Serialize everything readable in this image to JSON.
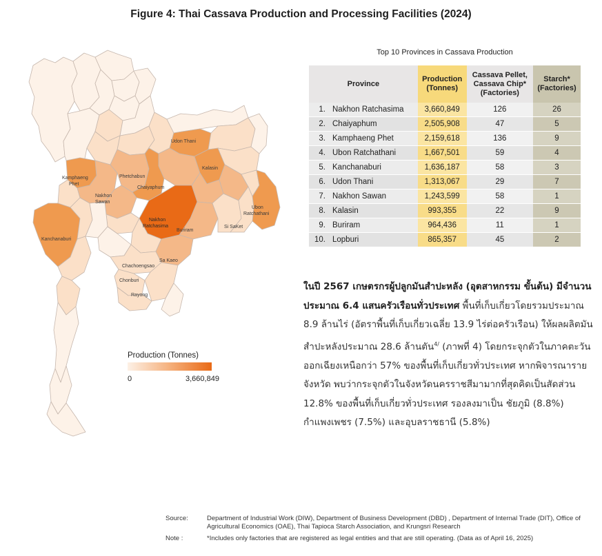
{
  "figure_title": "Figure 4: Thai Cassava Production and Processing Facilities (2024)",
  "map": {
    "colors": {
      "very_low": "#fdf2e8",
      "low": "#fbe0c8",
      "mid": "#f4b888",
      "high": "#ef9a4f",
      "max": "#e96a16",
      "outline": "#c6b7ad"
    },
    "labels": [
      {
        "name": "Kamphaeng Phet",
        "line1": "Kamphaeng",
        "line2": "Phet"
      },
      {
        "name": "Nakhon Sawan",
        "line1": "Nakhon",
        "line2": "Sawan"
      },
      {
        "name": "Phetchabun",
        "line1": "Phetchabun",
        "line2": ""
      },
      {
        "name": "Chaiyaphum",
        "line1": "Chaiyaphum",
        "line2": ""
      },
      {
        "name": "Udon Thani",
        "line1": "Udon Thani",
        "line2": ""
      },
      {
        "name": "Kalasin",
        "line1": "Kalasin",
        "line2": ""
      },
      {
        "name": "Nakhon Ratchasima",
        "line1": "Nakhon",
        "line2": "Ratchasima"
      },
      {
        "name": "Buriram",
        "line1": "Buriram",
        "line2": ""
      },
      {
        "name": "Ubon Ratchathani",
        "line1": "Ubon",
        "line2": "Ratchathani"
      },
      {
        "name": "Si SaKet",
        "line1": "Si SaKet",
        "line2": ""
      },
      {
        "name": "Kanchanaburi",
        "line1": "Kanchanaburi",
        "line2": ""
      },
      {
        "name": "Chachoengsao",
        "line1": "Chachoengsao",
        "line2": ""
      },
      {
        "name": "Sa Kaeo",
        "line1": "Sa Kaeo",
        "line2": ""
      },
      {
        "name": "Chonburi",
        "line1": "Chonburi",
        "line2": ""
      },
      {
        "name": "Rayong",
        "line1": "Rayong",
        "line2": ""
      }
    ]
  },
  "legend": {
    "title": "Production (Tonnes)",
    "min": "0",
    "max": "3,660,849",
    "gradient_start": "#fdf1e6",
    "gradient_end": "#e96a16"
  },
  "table": {
    "caption": "Top 10 Provinces in Cassava Production",
    "headers": {
      "province": "Province",
      "production_l1": "Production",
      "production_l2": "(Tonnes)",
      "pellet_l1": "Cassava Pellet,",
      "pellet_l2": "Cassava Chip*",
      "pellet_l3": "(Factories)",
      "starch_l1": "Starch*",
      "starch_l2": "(Factories)"
    },
    "rows": [
      {
        "rank": "1.",
        "province": "Nakhon Ratchasima",
        "production": "3,660,849",
        "pellet": "126",
        "starch": "26"
      },
      {
        "rank": "2.",
        "province": "Chaiyaphum",
        "production": "2,505,908",
        "pellet": "47",
        "starch": "5"
      },
      {
        "rank": "3.",
        "province": "Kamphaeng Phet",
        "production": "2,159,618",
        "pellet": "136",
        "starch": "9"
      },
      {
        "rank": "4.",
        "province": "Ubon Ratchathani",
        "production": "1,667,501",
        "pellet": "59",
        "starch": "4"
      },
      {
        "rank": "5.",
        "province": "Kanchanaburi",
        "production": "1,636,187",
        "pellet": "58",
        "starch": "3"
      },
      {
        "rank": "6.",
        "province": "Udon Thani",
        "production": "1,313,067",
        "pellet": "29",
        "starch": "7"
      },
      {
        "rank": "7.",
        "province": "Nakhon Sawan",
        "production": "1,243,599",
        "pellet": "58",
        "starch": "1"
      },
      {
        "rank": "8.",
        "province": "Kalasin",
        "production": "993,355",
        "pellet": "22",
        "starch": "9"
      },
      {
        "rank": "9.",
        "province": "Buriram",
        "production": "964,436",
        "pellet": "11",
        "starch": "1"
      },
      {
        "rank": "10.",
        "province": "Lopburi",
        "production": "865,357",
        "pellet": "45",
        "starch": "2"
      }
    ]
  },
  "paragraph": {
    "lead": "ในปี 2567 เกษตรกรผู้ปลูกมันสำปะหลัง (อุตสาหกรรม ขั้นต้น) มีจำนวนประมาณ 6.4 แสนครัวเรือนทั่วประเทศ",
    "body1": " พื้นที่เก็บเกี่ยวโดยรวมประมาณ 8.9 ล้านไร่ (อัตราพื้นที่เก็บเกี่ยวเฉลี่ย 13.9 ไร่ต่อครัวเรือน) ให้ผลผลิตมันสำปะหลังประมาณ 28.6 ล้านตัน",
    "footnote": "4/",
    "body2": " (ภาพที่ 4) โดยกระจุกตัวในภาคตะวันออกเฉียงเหนือกว่า 57% ของพื้นที่เก็บเกี่ยวทั่วประเทศ หากพิจารณารายจังหวัด พบว่ากระจุกตัวในจังหวัดนครราชสีมามากที่สุดคิดเป็นสัดส่วน 12.8% ของพื้นที่เก็บเกี่ยวทั่วประเทศ รองลงมาเป็น ชัยภูมิ (8.8%) กำแพงเพชร (7.5%) และอุบลราชธานี (5.8%)"
  },
  "footer": {
    "source_label": "Source:",
    "source_text": "Department of Industrial Work (DIW), Department of Business Development (DBD) , Department of Internal Trade (DIT), Office of Agricultural Economics (OAE), Thai Tapioca Starch Association, and Krungsri Research",
    "note_label": "Note :",
    "note_text": "*Includes only factories that are registered as legal entities and that are still operating. (Data as of April 16, 2025)"
  }
}
